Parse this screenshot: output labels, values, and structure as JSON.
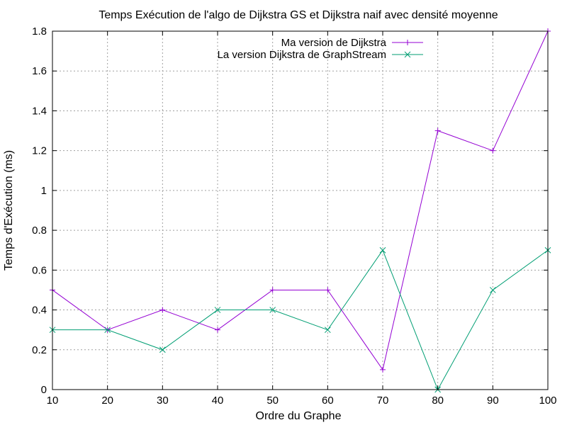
{
  "chart_data": {
    "type": "line",
    "title": "Temps Exécution de l'algo de Dijkstra GS et Dijkstra naif avec densité moyenne",
    "xlabel": "Ordre du Graphe",
    "ylabel": "Temps d'Exécution (ms)",
    "xlim": [
      10,
      100
    ],
    "ylim": [
      0,
      1.8
    ],
    "xticks": [
      "10",
      "20",
      "30",
      "40",
      "50",
      "60",
      "70",
      "80",
      "90",
      "100"
    ],
    "yticks": [
      "0",
      "0.2",
      "0.4",
      "0.6",
      "0.8",
      "1",
      "1.2",
      "1.4",
      "1.6",
      "1.8"
    ],
    "grid": true,
    "legend_position": "top-right",
    "x": [
      10,
      20,
      30,
      40,
      50,
      60,
      70,
      80,
      90,
      100
    ],
    "series": [
      {
        "name": "Ma version de Dijkstra",
        "color": "#9400d3",
        "marker": "plus",
        "values": [
          0.5,
          0.3,
          0.4,
          0.3,
          0.5,
          0.5,
          0.1,
          1.3,
          1.2,
          1.8
        ]
      },
      {
        "name": "La version Dijkstra de GraphStream",
        "color": "#009e73",
        "marker": "cross",
        "values": [
          0.3,
          0.3,
          0.2,
          0.4,
          0.4,
          0.3,
          0.7,
          0.0,
          0.5,
          0.7
        ]
      }
    ]
  }
}
